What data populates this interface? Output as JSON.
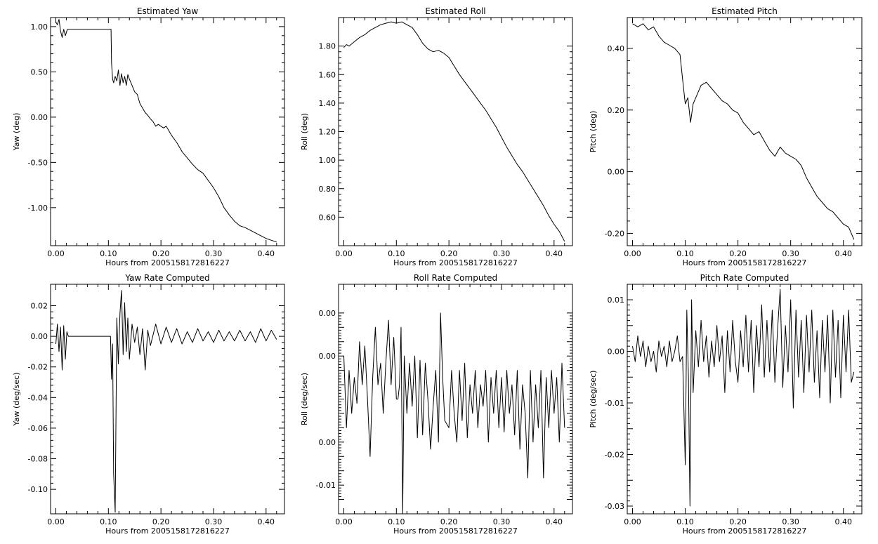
{
  "chart_data": [
    {
      "type": "line",
      "title": "Estimated Yaw",
      "xlabel": "Hours from 2005158172816227",
      "ylabel": "Yaw (deg)",
      "xlim": [
        -0.01,
        0.435
      ],
      "ylim": [
        -1.42,
        1.1
      ],
      "xticks": [
        0.0,
        0.1,
        0.2,
        0.3,
        0.4
      ],
      "xticklabels": [
        "0.00",
        "0.10",
        "0.20",
        "0.30",
        "0.40"
      ],
      "yticks": [
        1.0,
        0.5,
        0.0,
        -0.5,
        -1.0
      ],
      "yticklabels": [
        "1.00",
        "0.50",
        "0.00",
        "-0.50",
        "-1.00"
      ],
      "series": [
        {
          "x": [
            0.0,
            0.003,
            0.006,
            0.009,
            0.012,
            0.015,
            0.018,
            0.022,
            0.04,
            0.06,
            0.08,
            0.105,
            0.106,
            0.108,
            0.11,
            0.113,
            0.116,
            0.119,
            0.122,
            0.125,
            0.128,
            0.131,
            0.134,
            0.137,
            0.14,
            0.145,
            0.15,
            0.155,
            0.16,
            0.165,
            0.17,
            0.175,
            0.18,
            0.185,
            0.19,
            0.195,
            0.2,
            0.205,
            0.21,
            0.215,
            0.22,
            0.23,
            0.24,
            0.25,
            0.26,
            0.27,
            0.28,
            0.29,
            0.3,
            0.31,
            0.32,
            0.33,
            0.34,
            0.35,
            0.36,
            0.37,
            0.38,
            0.39,
            0.4,
            0.41,
            0.42
          ],
          "y": [
            1.05,
            1.02,
            1.08,
            0.95,
            0.88,
            0.97,
            0.9,
            0.97,
            0.97,
            0.97,
            0.97,
            0.97,
            0.6,
            0.42,
            0.38,
            0.45,
            0.4,
            0.52,
            0.35,
            0.48,
            0.38,
            0.45,
            0.35,
            0.47,
            0.42,
            0.35,
            0.28,
            0.25,
            0.15,
            0.1,
            0.05,
            0.02,
            -0.02,
            -0.05,
            -0.1,
            -0.08,
            -0.1,
            -0.12,
            -0.1,
            -0.15,
            -0.2,
            -0.28,
            -0.38,
            -0.45,
            -0.52,
            -0.58,
            -0.62,
            -0.7,
            -0.78,
            -0.88,
            -1.0,
            -1.08,
            -1.15,
            -1.2,
            -1.22,
            -1.25,
            -1.28,
            -1.31,
            -1.34,
            -1.36,
            -1.38
          ]
        }
      ]
    },
    {
      "type": "line",
      "title": "Estimated Roll",
      "xlabel": "Hours from 2005158172816227",
      "ylabel": "Roll (deg)",
      "xlim": [
        -0.01,
        0.435
      ],
      "ylim": [
        0.4,
        2.0
      ],
      "xticks": [
        0.0,
        0.1,
        0.2,
        0.3,
        0.4
      ],
      "xticklabels": [
        "0.00",
        "0.10",
        "0.20",
        "0.30",
        "0.40"
      ],
      "yticks": [
        1.8,
        1.6,
        1.4,
        1.2,
        1.0,
        0.8,
        0.6
      ],
      "yticklabels": [
        "1.80",
        "1.60",
        "1.40",
        "1.20",
        "1.00",
        "0.80",
        "0.60"
      ],
      "series": [
        {
          "x": [
            0.0,
            0.005,
            0.01,
            0.02,
            0.03,
            0.04,
            0.05,
            0.06,
            0.07,
            0.08,
            0.09,
            0.1,
            0.11,
            0.12,
            0.13,
            0.14,
            0.15,
            0.16,
            0.17,
            0.18,
            0.19,
            0.2,
            0.21,
            0.22,
            0.23,
            0.24,
            0.25,
            0.26,
            0.27,
            0.28,
            0.29,
            0.3,
            0.31,
            0.32,
            0.33,
            0.34,
            0.35,
            0.36,
            0.37,
            0.38,
            0.39,
            0.4,
            0.41,
            0.42
          ],
          "y": [
            1.79,
            1.81,
            1.8,
            1.83,
            1.86,
            1.88,
            1.91,
            1.93,
            1.95,
            1.96,
            1.97,
            1.96,
            1.97,
            1.95,
            1.93,
            1.88,
            1.82,
            1.78,
            1.76,
            1.77,
            1.75,
            1.72,
            1.66,
            1.6,
            1.55,
            1.5,
            1.45,
            1.4,
            1.35,
            1.29,
            1.23,
            1.16,
            1.09,
            1.03,
            0.97,
            0.92,
            0.86,
            0.8,
            0.74,
            0.68,
            0.61,
            0.55,
            0.5,
            0.43
          ]
        }
      ]
    },
    {
      "type": "line",
      "title": "Estimated Pitch",
      "xlabel": "Hours from 2005158172816227",
      "ylabel": "Pitch (deg)",
      "xlim": [
        -0.01,
        0.435
      ],
      "ylim": [
        -0.24,
        0.5
      ],
      "xticks": [
        0.0,
        0.1,
        0.2,
        0.3,
        0.4
      ],
      "xticklabels": [
        "0.00",
        "0.10",
        "0.20",
        "0.30",
        "0.40"
      ],
      "yticks": [
        0.4,
        0.2,
        0.0,
        -0.2
      ],
      "yticklabels": [
        "0.40",
        "0.20",
        "0.00",
        "-0.20"
      ],
      "series": [
        {
          "x": [
            0.0,
            0.01,
            0.02,
            0.03,
            0.04,
            0.05,
            0.06,
            0.07,
            0.08,
            0.09,
            0.095,
            0.1,
            0.105,
            0.11,
            0.115,
            0.12,
            0.13,
            0.14,
            0.15,
            0.16,
            0.17,
            0.18,
            0.19,
            0.2,
            0.21,
            0.22,
            0.23,
            0.24,
            0.25,
            0.26,
            0.27,
            0.28,
            0.29,
            0.3,
            0.31,
            0.32,
            0.33,
            0.34,
            0.35,
            0.36,
            0.37,
            0.38,
            0.39,
            0.4,
            0.41,
            0.42
          ],
          "y": [
            0.48,
            0.47,
            0.48,
            0.46,
            0.47,
            0.44,
            0.42,
            0.41,
            0.4,
            0.38,
            0.3,
            0.22,
            0.24,
            0.16,
            0.22,
            0.24,
            0.28,
            0.29,
            0.27,
            0.25,
            0.23,
            0.22,
            0.2,
            0.19,
            0.16,
            0.14,
            0.12,
            0.13,
            0.1,
            0.07,
            0.05,
            0.08,
            0.06,
            0.05,
            0.04,
            0.02,
            -0.02,
            -0.05,
            -0.08,
            -0.1,
            -0.12,
            -0.13,
            -0.15,
            -0.17,
            -0.18,
            -0.22
          ]
        }
      ]
    },
    {
      "type": "line",
      "title": "Yaw Rate Computed",
      "xlabel": "Hours from 2005158172816227",
      "ylabel": "Yaw (deg/sec)",
      "xlim": [
        -0.01,
        0.435
      ],
      "ylim": [
        -0.116,
        0.034
      ],
      "xticks": [
        0.0,
        0.1,
        0.2,
        0.3,
        0.4
      ],
      "xticklabels": [
        "0.00",
        "0.10",
        "0.20",
        "0.30",
        "0.40"
      ],
      "yticks": [
        0.02,
        0.0,
        -0.02,
        -0.04,
        -0.06,
        -0.08,
        -0.1
      ],
      "yticklabels": [
        "0.02",
        "0.00",
        "-0.02",
        "-0.04",
        "-0.06",
        "-0.08",
        "-0.10"
      ],
      "series": [
        {
          "x": [
            0.0,
            0.003,
            0.006,
            0.009,
            0.012,
            0.015,
            0.018,
            0.021,
            0.024,
            0.05,
            0.08,
            0.1,
            0.104,
            0.106,
            0.108,
            0.11,
            0.113,
            0.116,
            0.119,
            0.122,
            0.125,
            0.128,
            0.131,
            0.134,
            0.137,
            0.14,
            0.145,
            0.15,
            0.155,
            0.16,
            0.165,
            0.17,
            0.175,
            0.18,
            0.19,
            0.2,
            0.21,
            0.22,
            0.23,
            0.24,
            0.25,
            0.26,
            0.27,
            0.28,
            0.29,
            0.3,
            0.31,
            0.32,
            0.33,
            0.34,
            0.35,
            0.36,
            0.37,
            0.38,
            0.39,
            0.4,
            0.41,
            0.42
          ],
          "y": [
            -0.005,
            0.008,
            -0.01,
            0.006,
            -0.022,
            0.007,
            -0.015,
            0.003,
            0.0,
            0.0,
            0.0,
            0.0,
            0.0,
            -0.028,
            -0.005,
            -0.09,
            -0.115,
            0.012,
            -0.018,
            0.015,
            0.03,
            -0.012,
            0.022,
            -0.01,
            0.012,
            -0.015,
            0.008,
            -0.004,
            0.006,
            -0.012,
            0.005,
            -0.022,
            0.004,
            -0.006,
            0.008,
            -0.005,
            0.006,
            -0.004,
            0.005,
            -0.005,
            0.003,
            -0.004,
            0.005,
            -0.003,
            0.003,
            -0.004,
            0.004,
            -0.003,
            0.003,
            -0.003,
            0.004,
            -0.003,
            0.003,
            -0.004,
            0.005,
            -0.003,
            0.004,
            -0.002
          ]
        }
      ]
    },
    {
      "type": "line",
      "title": "Roll Rate Computed",
      "xlabel": "Hours from 2005158172816227",
      "ylabel": "Roll (deg/sec)",
      "xlim": [
        -0.01,
        0.435
      ],
      "ylim": [
        -0.0115,
        0.0045
      ],
      "xticks": [
        0.0,
        0.1,
        0.2,
        0.3,
        0.4
      ],
      "xticklabels": [
        "0.00",
        "0.10",
        "0.20",
        "0.30",
        "0.40"
      ],
      "yticks": [
        0.0025,
        0.0015,
        0.0005,
        -0.0005,
        -0.0015,
        -0.0025,
        -0.0035,
        -0.0045,
        -0.0055,
        -0.0065,
        -0.0075,
        -0.0085,
        -0.0095,
        -0.0105
      ],
      "yticklabels": [
        "0.00",
        "",
        "",
        "0.00",
        "",
        "",
        "",
        "",
        "",
        "0.00",
        "",
        "",
        "-0.01",
        ""
      ],
      "series": [
        {
          "x": [
            0.0,
            0.005,
            0.01,
            0.015,
            0.02,
            0.025,
            0.03,
            0.035,
            0.04,
            0.045,
            0.05,
            0.055,
            0.06,
            0.065,
            0.07,
            0.075,
            0.08,
            0.085,
            0.09,
            0.095,
            0.1,
            0.103,
            0.106,
            0.109,
            0.112,
            0.115,
            0.12,
            0.125,
            0.13,
            0.135,
            0.14,
            0.145,
            0.15,
            0.155,
            0.16,
            0.165,
            0.17,
            0.175,
            0.18,
            0.184,
            0.188,
            0.192,
            0.2,
            0.205,
            0.21,
            0.215,
            0.22,
            0.225,
            0.23,
            0.235,
            0.24,
            0.245,
            0.25,
            0.255,
            0.26,
            0.265,
            0.27,
            0.275,
            0.28,
            0.285,
            0.29,
            0.295,
            0.3,
            0.305,
            0.31,
            0.315,
            0.32,
            0.325,
            0.33,
            0.335,
            0.34,
            0.345,
            0.35,
            0.355,
            0.36,
            0.365,
            0.37,
            0.375,
            0.38,
            0.385,
            0.39,
            0.395,
            0.4,
            0.405,
            0.41,
            0.415,
            0.42
          ],
          "y": [
            -0.0005,
            -0.0055,
            -0.0015,
            -0.0045,
            -0.002,
            -0.0038,
            0.0005,
            -0.0025,
            0.0002,
            -0.0035,
            -0.0075,
            -0.002,
            0.0015,
            -0.0025,
            -0.001,
            -0.0045,
            -0.001,
            0.002,
            -0.0025,
            0.0008,
            -0.0035,
            -0.0035,
            -0.0025,
            0.0015,
            -0.0115,
            -0.0005,
            -0.0045,
            -0.001,
            -0.004,
            -0.0005,
            -0.0062,
            -0.0008,
            -0.006,
            -0.001,
            -0.0035,
            -0.007,
            -0.004,
            -0.0015,
            -0.0065,
            0.0025,
            -0.002,
            -0.005,
            -0.0055,
            -0.0015,
            -0.0045,
            -0.0065,
            -0.0015,
            -0.005,
            -0.001,
            -0.0062,
            -0.0025,
            -0.0045,
            -0.0015,
            -0.0055,
            -0.0025,
            -0.004,
            -0.0015,
            -0.0065,
            -0.002,
            -0.0045,
            -0.0015,
            -0.0055,
            -0.002,
            -0.0058,
            -0.0015,
            -0.0045,
            -0.0025,
            -0.006,
            -0.0015,
            -0.007,
            -0.0025,
            -0.0045,
            -0.009,
            -0.0015,
            -0.0065,
            -0.0025,
            -0.0055,
            -0.0015,
            -0.009,
            -0.002,
            -0.0055,
            -0.0015,
            -0.0045,
            -0.002,
            -0.0065,
            -0.001,
            -0.0055
          ]
        }
      ]
    },
    {
      "type": "line",
      "title": "Pitch Rate Computed",
      "xlabel": "Hours from 2005158172816227",
      "ylabel": "Pitch (deg/sec)",
      "xlim": [
        -0.01,
        0.435
      ],
      "ylim": [
        -0.0315,
        0.013
      ],
      "xticks": [
        0.0,
        0.1,
        0.2,
        0.3,
        0.4
      ],
      "xticklabels": [
        "0.00",
        "0.10",
        "0.20",
        "0.30",
        "0.40"
      ],
      "yticks": [
        0.01,
        0.005,
        0.0,
        -0.005,
        -0.01,
        -0.015,
        -0.02,
        -0.025,
        -0.03
      ],
      "yticklabels": [
        "0.01",
        "",
        "0.00",
        "",
        "-0.01",
        "",
        "-0.02",
        "",
        "-0.03"
      ],
      "series": [
        {
          "x": [
            0.0,
            0.005,
            0.01,
            0.015,
            0.02,
            0.025,
            0.03,
            0.035,
            0.04,
            0.045,
            0.05,
            0.055,
            0.06,
            0.065,
            0.07,
            0.075,
            0.08,
            0.085,
            0.09,
            0.095,
            0.1,
            0.103,
            0.106,
            0.109,
            0.112,
            0.115,
            0.12,
            0.125,
            0.13,
            0.135,
            0.14,
            0.145,
            0.15,
            0.155,
            0.16,
            0.165,
            0.17,
            0.175,
            0.18,
            0.185,
            0.19,
            0.195,
            0.2,
            0.205,
            0.21,
            0.215,
            0.22,
            0.225,
            0.23,
            0.235,
            0.24,
            0.245,
            0.25,
            0.255,
            0.26,
            0.265,
            0.27,
            0.275,
            0.28,
            0.285,
            0.29,
            0.295,
            0.3,
            0.305,
            0.31,
            0.315,
            0.32,
            0.325,
            0.33,
            0.335,
            0.34,
            0.345,
            0.35,
            0.355,
            0.36,
            0.365,
            0.37,
            0.375,
            0.38,
            0.385,
            0.39,
            0.395,
            0.4,
            0.405,
            0.41,
            0.415,
            0.42
          ],
          "y": [
            0.001,
            -0.002,
            0.003,
            -0.001,
            0.002,
            -0.003,
            0.001,
            -0.002,
            0.0,
            -0.004,
            0.002,
            -0.001,
            0.001,
            -0.003,
            0.002,
            -0.002,
            0.0,
            0.003,
            -0.002,
            -0.001,
            -0.022,
            0.008,
            -0.005,
            -0.03,
            0.01,
            -0.008,
            0.004,
            -0.003,
            0.006,
            -0.002,
            0.003,
            -0.005,
            0.002,
            -0.003,
            0.005,
            -0.002,
            0.003,
            -0.008,
            0.004,
            -0.004,
            0.006,
            -0.002,
            -0.006,
            0.004,
            -0.003,
            0.007,
            -0.004,
            0.006,
            -0.008,
            0.005,
            -0.003,
            0.009,
            -0.005,
            0.006,
            -0.004,
            0.008,
            -0.006,
            0.004,
            0.012,
            -0.007,
            0.005,
            -0.004,
            0.01,
            -0.011,
            0.008,
            -0.005,
            0.006,
            -0.008,
            0.007,
            -0.004,
            0.008,
            -0.006,
            0.004,
            -0.009,
            0.006,
            -0.004,
            0.007,
            -0.01,
            0.008,
            -0.005,
            0.006,
            -0.009,
            0.007,
            -0.004,
            0.008,
            -0.006,
            -0.004
          ]
        }
      ]
    }
  ]
}
